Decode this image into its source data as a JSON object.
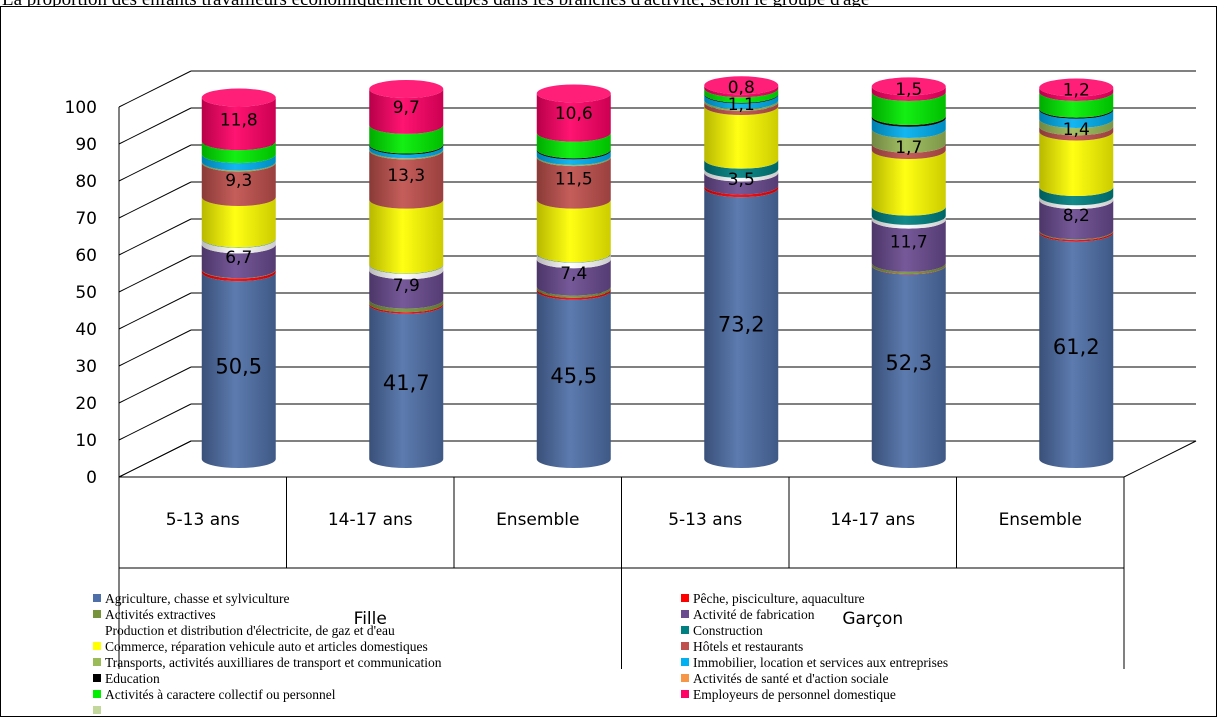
{
  "caption": "La proportion des enfants travailleurs économiquement occupés dans les branches d'activité, selon le groupe d'âge",
  "chart_data": {
    "type": "bar",
    "stacked": true,
    "three_d": true,
    "ylim": [
      0,
      100
    ],
    "yticks": [
      0,
      10,
      20,
      30,
      40,
      50,
      60,
      70,
      80,
      90,
      100
    ],
    "groups": [
      {
        "label": "Fille",
        "categories": [
          "5-13 ans",
          "14-17 ans",
          "Ensemble"
        ]
      },
      {
        "label": "Garçon",
        "categories": [
          "5-13 ans",
          "14-17 ans",
          "Ensemble"
        ]
      }
    ],
    "categories": [
      "5-13 ans",
      "14-17 ans",
      "Ensemble",
      "5-13 ans",
      "14-17 ans",
      "Ensemble"
    ],
    "series": [
      {
        "name": "Agriculture, chasse et sylviculture",
        "color": "#4f6fa8",
        "values": [
          50.5,
          41.7,
          45.5,
          73.2,
          52.3,
          61.2
        ],
        "labels": [
          "50,5",
          "41,7",
          "45,5",
          "73,2",
          "52,3",
          "61,2"
        ]
      },
      {
        "name": "Pêche, pisciculture, aquaculture",
        "color": "#ff0000",
        "values": [
          0.7,
          0.4,
          0.5,
          0.7,
          0.1,
          0.4
        ],
        "labels": [
          "",
          "",
          "",
          "",
          "",
          ""
        ]
      },
      {
        "name": "Activités extractives",
        "color": "#77933c",
        "values": [
          0.1,
          1.0,
          0.6,
          0.0,
          0.6,
          0.2
        ],
        "labels": [
          "",
          "",
          "",
          "",
          "",
          ""
        ]
      },
      {
        "name": "Activité de fabrication",
        "color": "#6a4b90",
        "values": [
          6.7,
          7.9,
          7.4,
          3.5,
          11.7,
          8.2
        ],
        "labels": [
          "6,7",
          "7,9",
          "7,4",
          "3,5",
          "11,7",
          "8,2"
        ]
      },
      {
        "name": "Production et distribution d'électricite, de gaz et d'eau",
        "color": "#ffffff",
        "values": [
          1.5,
          1.5,
          1.5,
          1.0,
          1.0,
          1.0
        ],
        "labels": [
          "",
          "",
          "",
          "",
          "",
          ""
        ]
      },
      {
        "name": "Construction",
        "color": "#008080",
        "values": [
          0.1,
          0.1,
          0.1,
          2.5,
          2.5,
          2.5
        ],
        "labels": [
          "",
          "",
          "",
          "",
          "",
          ""
        ]
      },
      {
        "name": "Commerce, réparation vehicule auto et articles domestiques",
        "color": "#ffff00",
        "values": [
          11.2,
          17.5,
          14.5,
          14.5,
          15.3,
          15.0
        ],
        "labels": [
          "",
          "",
          "",
          "",
          "",
          ""
        ]
      },
      {
        "name": "Hôtels et restaurants",
        "color": "#c0504d",
        "values": [
          9.3,
          13.3,
          11.5,
          1.1,
          1.7,
          1.4
        ],
        "labels": [
          "9,3",
          "13,3",
          "11,5",
          "1,1",
          "1,7",
          "1,4"
        ]
      },
      {
        "name": "Transports, activités auxilliares de transport et communication",
        "color": "#9bbb59",
        "values": [
          0.3,
          0.3,
          0.3,
          0.5,
          4.0,
          2.0
        ],
        "labels": [
          "",
          "",
          "",
          "",
          "",
          ""
        ]
      },
      {
        "name": "Immobilier, location et services aux entreprises",
        "color": "#00b0f0",
        "values": [
          2.0,
          1.0,
          1.5,
          1.5,
          3.0,
          2.5
        ],
        "labels": [
          "",
          "",
          "",
          "",
          "",
          ""
        ]
      },
      {
        "name": "Education",
        "color": "#000000",
        "values": [
          0.0,
          0.3,
          0.3,
          0.2,
          0.5,
          0.3
        ],
        "labels": [
          "",
          "",
          "",
          "",
          "",
          ""
        ]
      },
      {
        "name": "Activités de santé et d'action sociale",
        "color": "#f79646",
        "values": [
          0.0,
          0.0,
          0.0,
          0.0,
          0.0,
          0.0
        ],
        "labels": [
          "",
          "",
          "",
          "",
          "",
          ""
        ]
      },
      {
        "name": "Activités à caractere collectif ou personnel",
        "color": "#00ee00",
        "values": [
          3.5,
          5.3,
          4.5,
          1.5,
          6.5,
          4.5
        ],
        "labels": [
          "",
          "",
          "",
          "",
          "",
          ""
        ]
      },
      {
        "name": "Employeurs de personnel domestique",
        "color": "#ff0066",
        "values": [
          11.8,
          9.7,
          10.6,
          0.8,
          1.5,
          1.2
        ],
        "labels": [
          "11,8",
          "9,7",
          "10,6",
          "0,8",
          "1,5",
          "1,2"
        ]
      },
      {
        "name": "",
        "color": "#c3d69b",
        "values": [
          0,
          0,
          0,
          0,
          0,
          0
        ],
        "labels": [
          "",
          "",
          "",
          "",
          "",
          ""
        ]
      }
    ],
    "legend_position": "bottom",
    "legend_markers": [
      true,
      true,
      true,
      true,
      false,
      true,
      true,
      true,
      true,
      true,
      true,
      true,
      true,
      true,
      true
    ]
  }
}
